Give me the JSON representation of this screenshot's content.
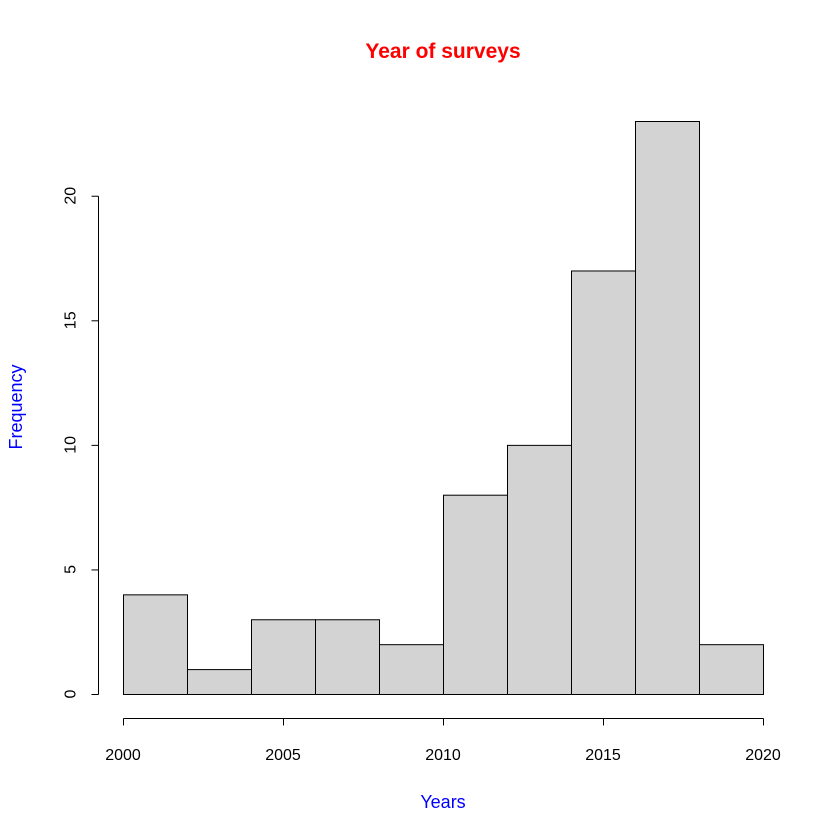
{
  "chart_data": {
    "type": "bar",
    "subtype": "histogram",
    "title": "Year of surveys",
    "xlabel": "Years",
    "ylabel": "Frequency",
    "bin_edges": [
      2000,
      2002,
      2004,
      2006,
      2008,
      2010,
      2012,
      2014,
      2016,
      2018,
      2020
    ],
    "values": [
      4,
      1,
      3,
      3,
      2,
      8,
      10,
      17,
      23,
      2
    ],
    "xlim": [
      2000,
      2020
    ],
    "ylim": [
      0,
      23
    ],
    "x_ticks": [
      2000,
      2005,
      2010,
      2015,
      2020
    ],
    "y_ticks": [
      0,
      5,
      10,
      15,
      20
    ],
    "grid": false,
    "colors": {
      "bar_fill": "#d3d3d3",
      "bar_stroke": "#000000",
      "title": "#ff0000",
      "axis_labels": "#0000ff"
    }
  }
}
